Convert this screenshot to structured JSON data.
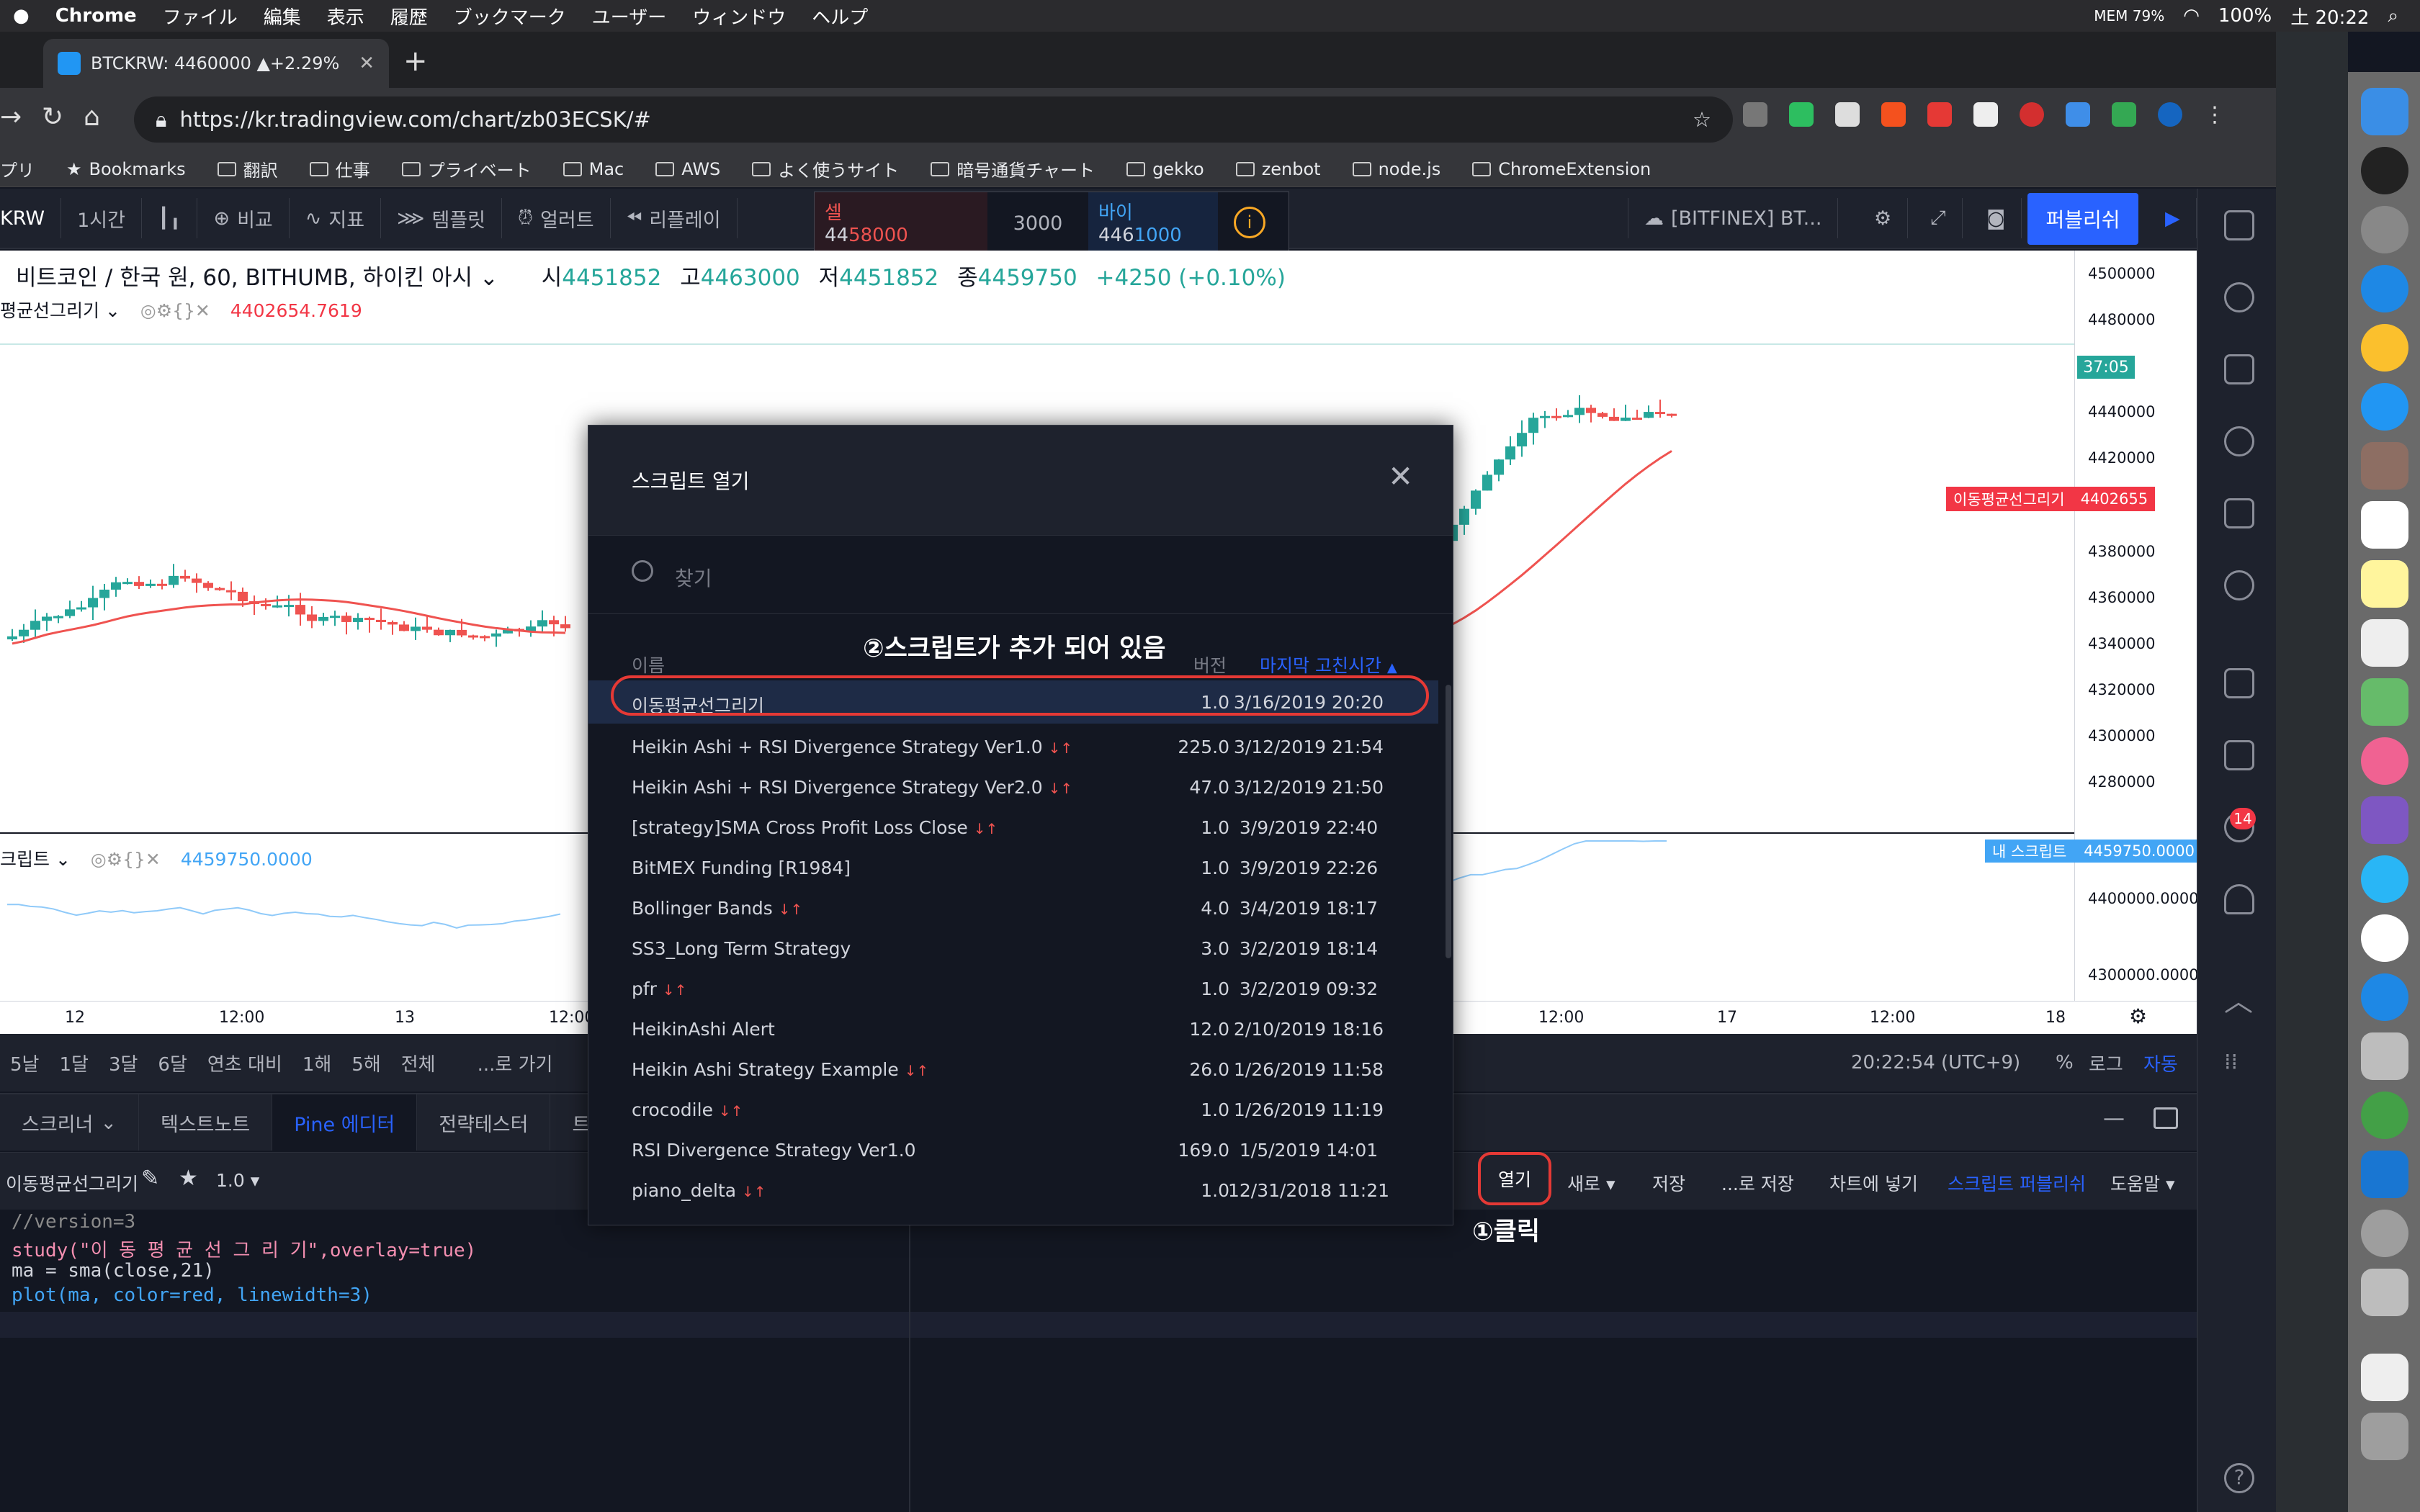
{
  "menubar": {
    "app": "Chrome",
    "items": [
      "ファイル",
      "編集",
      "表示",
      "履歴",
      "ブックマーク",
      "ユーザー",
      "ウィンドウ",
      "ヘルプ"
    ],
    "battery": "100%",
    "clock": "土 20:22",
    "mem": "MEM 79%"
  },
  "browser": {
    "tab_title": "BTCKRW: 4460000 ▲+2.29%",
    "url": "https://kr.tradingview.com/chart/zb03ECSK/#",
    "bookmarks": [
      "プリ",
      "Bookmarks",
      "翻訳",
      "仕事",
      "プライベート",
      "Mac",
      "AWS",
      "よく使うサイト",
      "暗号通貨チャート",
      "gekko",
      "zenbot",
      "node.js",
      "ChromeExtension"
    ]
  },
  "tv_toolbar": {
    "symbol": "KRW",
    "interval": "1시간",
    "compare": "비교",
    "indicators": "지표",
    "templates": "템플릿",
    "alerts": "얼러트",
    "replay": "리플레이",
    "layout": "[BITFINEX] BT...",
    "publish": "퍼블리쉬"
  },
  "trade": {
    "sell_label": "셀",
    "sell_price_a": "44",
    "sell_price_b": "58000",
    "spread": "3000",
    "buy_label": "바이",
    "buy_price_a": "446",
    "buy_price_b": "1000",
    "info": "i"
  },
  "symbol_line": {
    "name": "비트코인 / 한국 원, 60, BITHUMB, 하이킨 아시",
    "open_l": "시",
    "open": "4451852",
    "high_l": "고",
    "high": "4463000",
    "low_l": "저",
    "low": "4451852",
    "close_l": "종",
    "close": "4459750",
    "change": "+4250 (+0.10%)"
  },
  "ma_line": {
    "name": "평균선그리기",
    "value": "4402654.7619"
  },
  "ind_line": {
    "name": "크립트",
    "value": "4459750.0000"
  },
  "price_scale": {
    "ticks": [
      "4500000",
      "4480000",
      "4440000",
      "4420000",
      "4380000",
      "4360000",
      "4340000",
      "4320000",
      "4300000",
      "4280000"
    ],
    "countdown": "37:05",
    "ma_label": "이동평균선그리기",
    "ma_value": "4402655",
    "ind_label": "내 스크립트",
    "ind_value": "4459750.0000",
    "ind_ticks": [
      "4400000.0000",
      "4300000.0000"
    ]
  },
  "time_axis": [
    "12",
    "12:00",
    "13",
    "12:00",
    "12:00",
    "17",
    "12:00",
    "18"
  ],
  "range_bar": {
    "ranges": [
      "5날",
      "1달",
      "3달",
      "6달",
      "연초 대비",
      "1해",
      "5해",
      "전체"
    ],
    "goto": "...로 가기",
    "clock": "20:22:54 (UTC+9)",
    "pct": "%",
    "log": "로그",
    "auto": "자동"
  },
  "bottom_tabs": [
    "스크리너",
    "텍스트노트",
    "Pine 에디터",
    "전략테스터",
    "트레이"
  ],
  "editor": {
    "script_name": "이동평균선그리기",
    "version": "1.0",
    "open": "열기",
    "new": "새로",
    "save": "저장",
    "save_as": "...로 저장",
    "add_to_chart": "차트에 넣기",
    "publish_script": "스크립트 퍼블리쉬",
    "help": "도움말"
  },
  "code": [
    "//version=3",
    "study(\"이 동 평 균 선 그 리 기\",overlay=true)",
    "ma = sma(close,21)",
    "plot(ma, color=red, linewidth=3)"
  ],
  "modal": {
    "title": "스크립트 열기",
    "search_placeholder": "찾기",
    "col_name": "이름",
    "col_version": "버전",
    "col_modified": "마지막 고친시간",
    "rows": [
      {
        "name": "이동평균선그리기",
        "version": "1.0",
        "date": "3/16/2019 20:20",
        "arrows": ""
      },
      {
        "name": "Heikin Ashi + RSI Divergence Strategy Ver1.0",
        "version": "225.0",
        "date": "3/12/2019 21:54",
        "arrows": "↓↑"
      },
      {
        "name": "Heikin Ashi + RSI Divergence Strategy Ver2.0",
        "version": "47.0",
        "date": "3/12/2019 21:50",
        "arrows": "↓↑"
      },
      {
        "name": "[strategy]SMA Cross Profit Loss Close",
        "version": "1.0",
        "date": "3/9/2019 22:40",
        "arrows": "↓↑"
      },
      {
        "name": "BitMEX Funding [R1984]",
        "version": "1.0",
        "date": "3/9/2019 22:26",
        "arrows": ""
      },
      {
        "name": "Bollinger Bands",
        "version": "4.0",
        "date": "3/4/2019 18:17",
        "arrows": "↓↑"
      },
      {
        "name": "SS3_Long Term Strategy",
        "version": "3.0",
        "date": "3/2/2019 18:14",
        "arrows": ""
      },
      {
        "name": "pfr",
        "version": "1.0",
        "date": "3/2/2019 09:32",
        "arrows": "↓↑"
      },
      {
        "name": "HeikinAshi Alert",
        "version": "12.0",
        "date": "2/10/2019 18:16",
        "arrows": ""
      },
      {
        "name": "Heikin Ashi Strategy Example",
        "version": "26.0",
        "date": "1/26/2019 11:58",
        "arrows": "↓↑"
      },
      {
        "name": "crocodile",
        "version": "1.0",
        "date": "1/26/2019 11:19",
        "arrows": "↓↑"
      },
      {
        "name": "RSI Divergence Strategy Ver1.0",
        "version": "169.0",
        "date": "1/5/2019 14:01",
        "arrows": ""
      },
      {
        "name": "piano_delta",
        "version": "1.0",
        "date": "12/31/2018 11:21",
        "arrows": "↓↑"
      }
    ]
  },
  "annotations": {
    "step1": "①클릭",
    "step2": "②스크립트가 추가 되어 있음"
  },
  "badge": "14",
  "colors": {
    "up": "#26a69a",
    "down": "#ef5350",
    "accent": "#2962ff",
    "annotation": "#e53935"
  }
}
